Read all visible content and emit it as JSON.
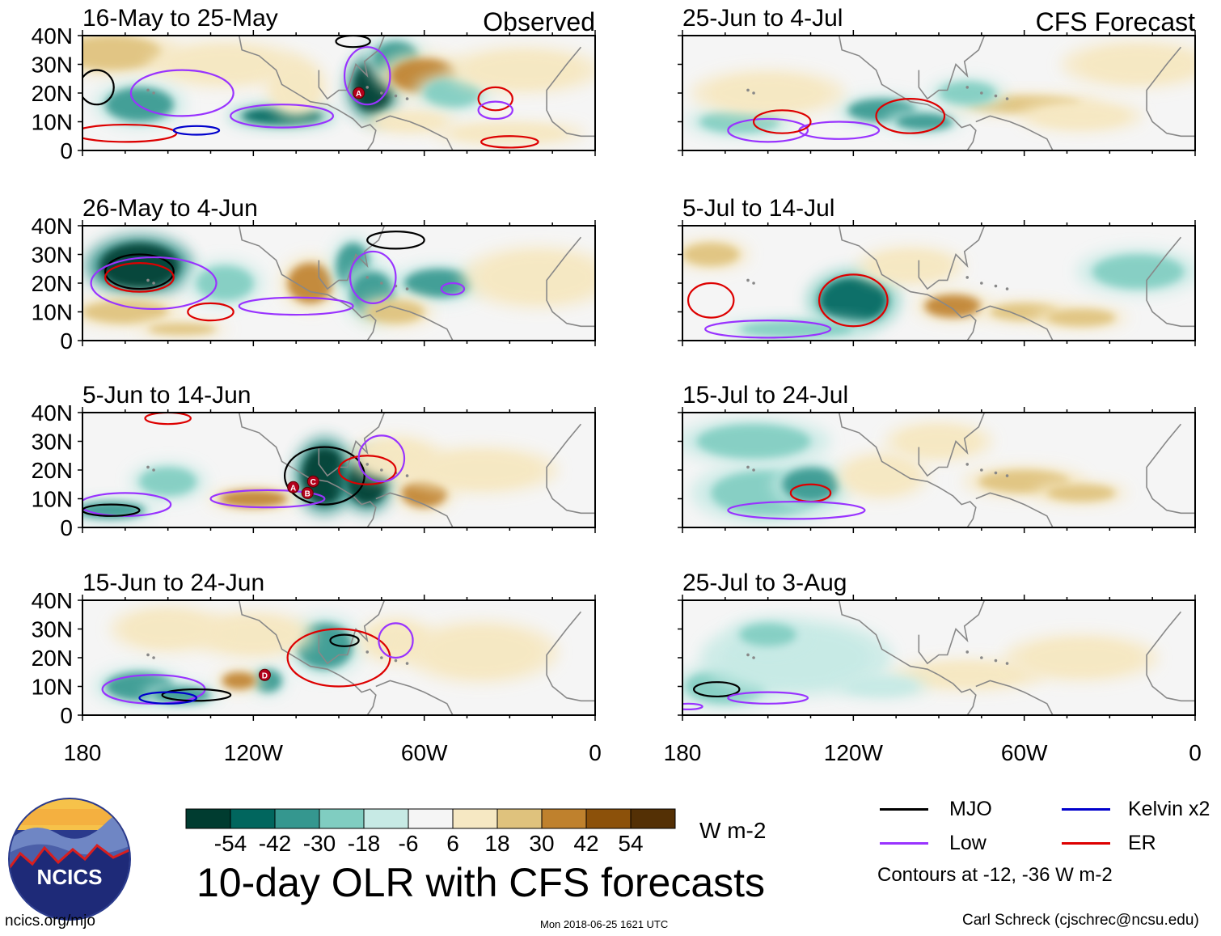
{
  "headers": {
    "observed": "Observed",
    "forecast": "CFS Forecast"
  },
  "panels": {
    "observed": [
      "16-May to 25-May",
      "26-May to 4-Jun",
      "5-Jun to 14-Jun",
      "15-Jun to 24-Jun"
    ],
    "forecast": [
      "25-Jun to 4-Jul",
      "5-Jul to 14-Jul",
      "15-Jul to 24-Jul",
      "25-Jul to 3-Aug"
    ]
  },
  "chart_data": {
    "type": "heatmap",
    "title": "10-day OLR with CFS forecasts",
    "units": "W m-2",
    "x_ticks": [
      "180",
      "120W",
      "60W",
      "0"
    ],
    "x_range": [
      -180,
      0
    ],
    "y_ticks": [
      "40N",
      "30N",
      "20N",
      "10N",
      "0"
    ],
    "y_range": [
      0,
      40
    ],
    "colorbar": {
      "labels": [
        "-54",
        "-42",
        "-30",
        "-18",
        "-6",
        "6",
        "18",
        "30",
        "42",
        "54"
      ],
      "colors": [
        "#003c30",
        "#01665e",
        "#35978f",
        "#80cdc1",
        "#c7eae5",
        "#f5f5f5",
        "#f6e8c3",
        "#dfc27d",
        "#bf812d",
        "#8c510a",
        "#543005"
      ]
    },
    "legend": [
      {
        "name": "MJO",
        "color": "#000000"
      },
      {
        "name": "Kelvin x2",
        "color": "#0000cc"
      },
      {
        "name": "Low",
        "color": "#9933ff"
      },
      {
        "name": "ER",
        "color": "#dd0000"
      }
    ],
    "contour_note": "Contours at -12, -36 W m-2",
    "storm_labels": [
      "A",
      "A",
      "B",
      "C",
      "D"
    ]
  },
  "logo": {
    "text": "NCICS"
  },
  "footer": {
    "site": "ncics.org/mjo",
    "timestamp": "Mon 2018-06-25 1621 UTC",
    "credit": "Carl Schreck (cjschrec@ncsu.edu)"
  },
  "colors": {
    "land_outline": "#888888"
  }
}
